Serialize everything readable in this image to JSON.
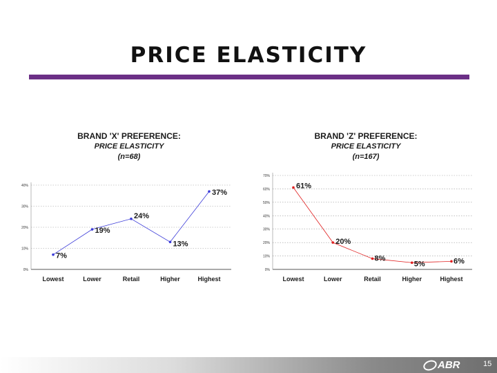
{
  "slide": {
    "title": "PRICE ELASTICITY",
    "page_number": "15"
  },
  "logo": {
    "text": "ABR"
  },
  "colors": {
    "rule": "#6b2f86",
    "series_x": "#3a3ad8",
    "series_z": "#e02020"
  },
  "chart_data": [
    {
      "type": "line",
      "title": "BRAND 'X' PREFERENCE:",
      "subtitle": "PRICE ELASTICITY",
      "note": "(n=68)",
      "categories": [
        "Lowest",
        "Lower",
        "Retail",
        "Higher",
        "Highest"
      ],
      "values": [
        7,
        19,
        24,
        13,
        37
      ],
      "data_labels": [
        "7%",
        "19%",
        "24%",
        "13%",
        "37%"
      ],
      "y_ticks": [
        "0%",
        "10%",
        "20%",
        "30%",
        "40%"
      ],
      "ylim": [
        0,
        40
      ],
      "grid": true,
      "color": "#3a3ad8"
    },
    {
      "type": "line",
      "title": "BRAND 'Z' PREFERENCE:",
      "subtitle": "PRICE ELASTICITY",
      "note": "(n=167)",
      "categories": [
        "Lowest",
        "Lower",
        "Retail",
        "Higher",
        "Highest"
      ],
      "values": [
        61,
        20,
        8,
        5,
        6
      ],
      "data_labels": [
        "61%",
        "20%",
        "8%",
        "5%",
        "6%"
      ],
      "y_ticks": [
        "0%",
        "10%",
        "20%",
        "30%",
        "40%",
        "50%",
        "60%",
        "70%"
      ],
      "ylim": [
        0,
        70
      ],
      "grid": true,
      "color": "#e02020"
    }
  ]
}
